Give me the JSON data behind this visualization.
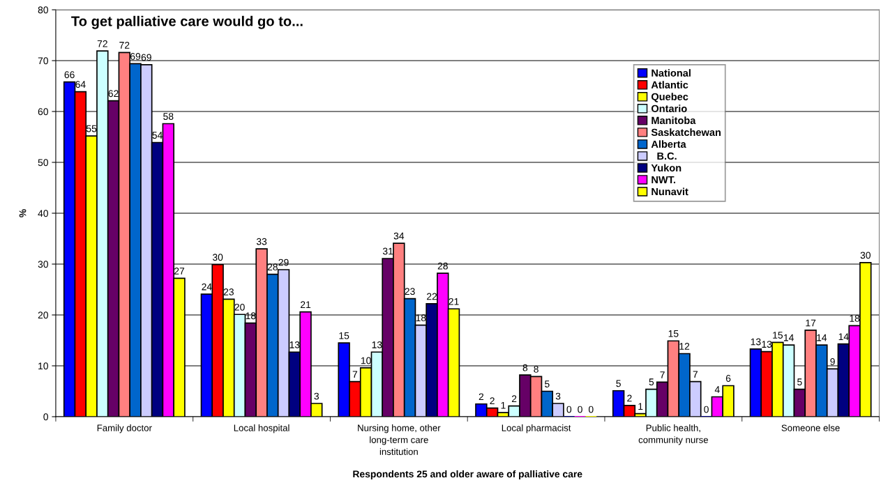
{
  "chart_data": {
    "type": "bar",
    "title": "To get palliative care would go to...",
    "xlabel": "Respondents 25 and older aware of palliative care",
    "ylabel": "%",
    "categories": [
      "Family doctor",
      "Local hospital",
      "Nursing home, other\nlong-term care\ninstitution",
      "Local pharmacist",
      "Public health,\ncommunity nurse",
      "Someone else"
    ],
    "series": [
      {
        "name": "National",
        "color": "#0000ff",
        "values": [
          65.8,
          24.1,
          14.5,
          2.5,
          5.1,
          13.3
        ],
        "value_labels": [
          "66",
          "24",
          "15",
          "2",
          "5",
          "13"
        ]
      },
      {
        "name": "Atlantic",
        "color": "#ff0000",
        "values": [
          63.9,
          29.9,
          6.9,
          1.7,
          2.2,
          12.8
        ],
        "value_labels": [
          "64",
          "30",
          "7",
          "2",
          "2",
          "13"
        ]
      },
      {
        "name": "Quebec",
        "color": "#ffff00",
        "values": [
          55.2,
          23.1,
          9.6,
          0.8,
          0.6,
          14.6
        ],
        "value_labels": [
          "55",
          "23",
          "10",
          "1",
          "1",
          "15"
        ]
      },
      {
        "name": "Ontario",
        "color": "#ccffff",
        "values": [
          71.9,
          20.1,
          12.7,
          2.1,
          5.4,
          14.1
        ],
        "value_labels": [
          "72",
          "20",
          "13",
          "2",
          "5",
          "14"
        ]
      },
      {
        "name": "Manitoba",
        "color": "#660066",
        "values": [
          62.1,
          18.4,
          31.1,
          8.2,
          6.8,
          5.4
        ],
        "value_labels": [
          "62",
          "18",
          "31",
          "8",
          "7",
          "5"
        ]
      },
      {
        "name": "Saskatchewan",
        "color": "#ff8080",
        "values": [
          71.6,
          33.0,
          34.1,
          7.9,
          14.9,
          17.0
        ],
        "value_labels": [
          "72",
          "33",
          "34",
          "8",
          "15",
          "17"
        ]
      },
      {
        "name": "Alberta",
        "color": "#0066cc",
        "values": [
          69.4,
          28.0,
          23.2,
          5.0,
          12.4,
          14.1
        ],
        "value_labels": [
          "69",
          "28",
          "23",
          "5",
          "12",
          "14"
        ]
      },
      {
        "name": "  B.C.",
        "color": "#ccccff",
        "values": [
          69.2,
          28.9,
          18.0,
          2.6,
          6.9,
          9.4
        ],
        "value_labels": [
          "69",
          "29",
          "18",
          "3",
          "7",
          "9"
        ]
      },
      {
        "name": "Yukon",
        "color": "#000080",
        "values": [
          53.9,
          12.7,
          22.2,
          0,
          0,
          14.3
        ],
        "value_labels": [
          "54",
          "13",
          "22",
          "0",
          "0",
          "14"
        ]
      },
      {
        "name": "NWT.",
        "color": "#ff00ff",
        "values": [
          57.6,
          20.6,
          28.2,
          0,
          3.9,
          17.9
        ],
        "value_labels": [
          "58",
          "21",
          "28",
          "0",
          "4",
          "18"
        ]
      },
      {
        "name": "Nunavit",
        "color": "#ffff00",
        "values": [
          27.2,
          2.6,
          21.2,
          0,
          6.1,
          30.3
        ],
        "value_labels": [
          "27",
          "3",
          "21",
          "0",
          "6",
          "30"
        ]
      }
    ],
    "ylim": [
      0,
      80
    ],
    "yticks": [
      0,
      10,
      20,
      30,
      40,
      50,
      60,
      70,
      80
    ],
    "grid": "y",
    "legend": "top right"
  }
}
